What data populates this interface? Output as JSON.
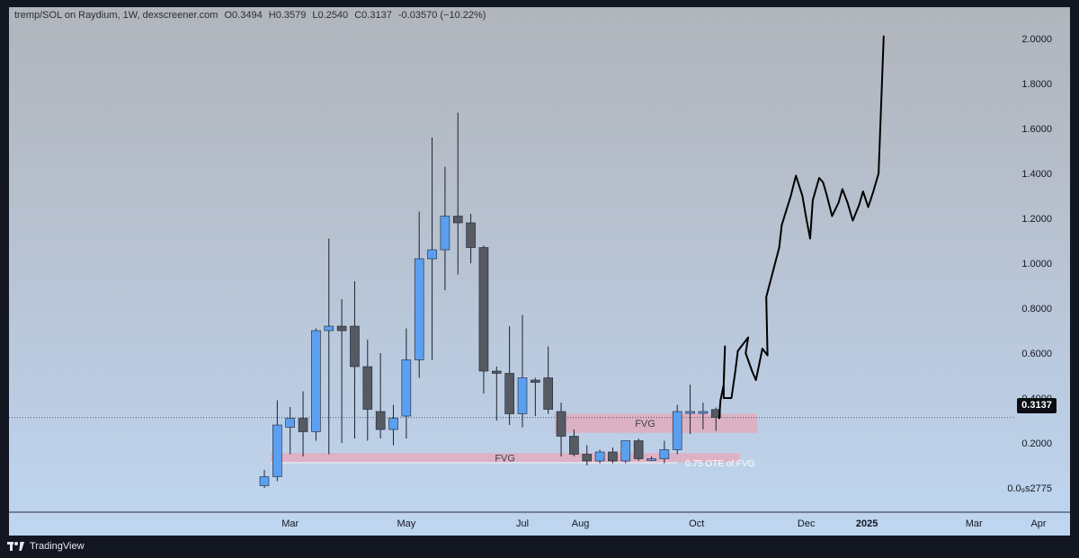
{
  "header": {
    "symbol": "tremp/SOL on Raydium, 1W, dexscreener.com",
    "open": "O0.3494",
    "high": "H0.3579",
    "low": "L0.2540",
    "close": "C0.3137",
    "change": "-0.03570 (−10.22%)"
  },
  "footer": {
    "brand": "TradingView",
    "logo_icon": "tradingview-logo-icon"
  },
  "colors": {
    "bull": "#5ba0f0",
    "bear": "#555a63",
    "fvg_zone": "#e8a7b8",
    "projection": "#000000"
  },
  "chart_data": {
    "type": "candlestick",
    "title": "",
    "symbol": "tremp/SOL",
    "exchange": "Raydium",
    "interval": "1W",
    "source": "dexscreener.com",
    "ylim": [
      -0.11,
      2.08
    ],
    "yticks": [
      {
        "v": 2.0,
        "label": "2.0000"
      },
      {
        "v": 1.8,
        "label": "1.8000"
      },
      {
        "v": 1.6,
        "label": "1.6000"
      },
      {
        "v": 1.4,
        "label": "1.4000"
      },
      {
        "v": 1.2,
        "label": "1.2000"
      },
      {
        "v": 1.0,
        "label": "1.0000"
      },
      {
        "v": 0.8,
        "label": "0.8000"
      },
      {
        "v": 0.6,
        "label": "0.6000"
      },
      {
        "v": 0.4,
        "label": "0.4000"
      },
      {
        "v": 0.2,
        "label": "0.2000"
      },
      {
        "v": 0.0,
        "label": "0.0₉s2775"
      }
    ],
    "xticks": [
      {
        "t": 2.0,
        "label": "Mar",
        "bold": false
      },
      {
        "t": 11.0,
        "label": "May",
        "bold": false
      },
      {
        "t": 20.0,
        "label": "Jul",
        "bold": false
      },
      {
        "t": 24.5,
        "label": "Aug",
        "bold": false
      },
      {
        "t": 33.5,
        "label": "Oct",
        "bold": false
      },
      {
        "t": 42.0,
        "label": "Dec",
        "bold": false
      },
      {
        "t": 46.7,
        "label": "2025",
        "bold": true
      },
      {
        "t": 55.0,
        "label": "Mar",
        "bold": false
      },
      {
        "t": 60.0,
        "label": "Apr",
        "bold": false
      }
    ],
    "last_price": {
      "value": 0.3137,
      "label": "0.3137"
    },
    "candles": [
      {
        "o": 0.01,
        "h": 0.08,
        "l": 0.0,
        "c": 0.05
      },
      {
        "o": 0.05,
        "h": 0.39,
        "l": 0.03,
        "c": 0.28
      },
      {
        "o": 0.27,
        "h": 0.36,
        "l": 0.15,
        "c": 0.31
      },
      {
        "o": 0.31,
        "h": 0.43,
        "l": 0.14,
        "c": 0.25
      },
      {
        "o": 0.25,
        "h": 0.71,
        "l": 0.21,
        "c": 0.7
      },
      {
        "o": 0.7,
        "h": 1.11,
        "l": 0.15,
        "c": 0.72
      },
      {
        "o": 0.72,
        "h": 0.84,
        "l": 0.2,
        "c": 0.7
      },
      {
        "o": 0.72,
        "h": 0.92,
        "l": 0.22,
        "c": 0.54
      },
      {
        "o": 0.54,
        "h": 0.66,
        "l": 0.21,
        "c": 0.35
      },
      {
        "o": 0.34,
        "h": 0.6,
        "l": 0.22,
        "c": 0.26
      },
      {
        "o": 0.26,
        "h": 0.37,
        "l": 0.19,
        "c": 0.31
      },
      {
        "o": 0.32,
        "h": 0.71,
        "l": 0.22,
        "c": 0.57
      },
      {
        "o": 0.57,
        "h": 1.23,
        "l": 0.49,
        "c": 1.02
      },
      {
        "o": 1.02,
        "h": 1.56,
        "l": 0.57,
        "c": 1.06
      },
      {
        "o": 1.06,
        "h": 1.43,
        "l": 0.88,
        "c": 1.21
      },
      {
        "o": 1.21,
        "h": 1.67,
        "l": 0.95,
        "c": 1.18
      },
      {
        "o": 1.18,
        "h": 1.22,
        "l": 1.0,
        "c": 1.07
      },
      {
        "o": 1.07,
        "h": 1.08,
        "l": 0.42,
        "c": 0.52
      },
      {
        "o": 0.52,
        "h": 0.54,
        "l": 0.3,
        "c": 0.51
      },
      {
        "o": 0.51,
        "h": 0.72,
        "l": 0.28,
        "c": 0.33
      },
      {
        "o": 0.33,
        "h": 0.77,
        "l": 0.27,
        "c": 0.49
      },
      {
        "o": 0.48,
        "h": 0.49,
        "l": 0.32,
        "c": 0.47
      },
      {
        "o": 0.49,
        "h": 0.63,
        "l": 0.33,
        "c": 0.35
      },
      {
        "o": 0.34,
        "h": 0.38,
        "l": 0.14,
        "c": 0.23
      },
      {
        "o": 0.23,
        "h": 0.26,
        "l": 0.14,
        "c": 0.15
      },
      {
        "o": 0.15,
        "h": 0.19,
        "l": 0.1,
        "c": 0.12
      },
      {
        "o": 0.12,
        "h": 0.17,
        "l": 0.11,
        "c": 0.16
      },
      {
        "o": 0.16,
        "h": 0.18,
        "l": 0.11,
        "c": 0.12
      },
      {
        "o": 0.12,
        "h": 0.21,
        "l": 0.11,
        "c": 0.21
      },
      {
        "o": 0.21,
        "h": 0.22,
        "l": 0.12,
        "c": 0.13
      },
      {
        "o": 0.13,
        "h": 0.14,
        "l": 0.12,
        "c": 0.13
      },
      {
        "o": 0.13,
        "h": 0.21,
        "l": 0.11,
        "c": 0.17
      },
      {
        "o": 0.17,
        "h": 0.37,
        "l": 0.15,
        "c": 0.34
      },
      {
        "o": 0.34,
        "h": 0.46,
        "l": 0.24,
        "c": 0.34
      },
      {
        "o": 0.34,
        "h": 0.38,
        "l": 0.26,
        "c": 0.34
      },
      {
        "o": 0.349,
        "h": 0.358,
        "l": 0.254,
        "c": 0.314
      }
    ],
    "zones": [
      {
        "label": "FVG",
        "t_start": 22.5,
        "t_end": 38.2,
        "y_top": 0.33,
        "y_bottom": 0.245
      },
      {
        "label": "FVG",
        "t_start": 0.5,
        "t_end": 36.8,
        "y_top": 0.155,
        "y_bottom": 0.115
      }
    ],
    "ote_line": {
      "label": "0.75 OTE of FVG",
      "value": 0.112,
      "t_start": 0.5,
      "t_end": 32.0
    },
    "projection": [
      [
        35.25,
        0.31
      ],
      [
        35.35,
        0.39
      ],
      [
        35.5,
        0.43
      ],
      [
        35.6,
        0.46
      ],
      [
        35.65,
        0.55
      ],
      [
        35.7,
        0.63
      ],
      [
        35.6,
        0.48
      ],
      [
        35.6,
        0.4
      ],
      [
        36.2,
        0.4
      ],
      [
        36.5,
        0.52
      ],
      [
        36.7,
        0.61
      ],
      [
        37.5,
        0.67
      ],
      [
        37.3,
        0.6
      ],
      [
        37.8,
        0.52
      ],
      [
        38.1,
        0.48
      ],
      [
        38.6,
        0.62
      ],
      [
        39.0,
        0.59
      ],
      [
        38.9,
        0.85
      ],
      [
        39.4,
        0.96
      ],
      [
        39.9,
        1.07
      ],
      [
        40.1,
        1.17
      ],
      [
        40.8,
        1.3
      ],
      [
        41.2,
        1.39
      ],
      [
        41.7,
        1.3
      ],
      [
        42.0,
        1.2
      ],
      [
        42.3,
        1.11
      ],
      [
        42.5,
        1.28
      ],
      [
        43.0,
        1.38
      ],
      [
        43.3,
        1.36
      ],
      [
        43.6,
        1.3
      ],
      [
        44.0,
        1.21
      ],
      [
        44.5,
        1.27
      ],
      [
        44.8,
        1.33
      ],
      [
        45.2,
        1.27
      ],
      [
        45.6,
        1.19
      ],
      [
        46.1,
        1.26
      ],
      [
        46.4,
        1.32
      ],
      [
        46.8,
        1.25
      ],
      [
        47.2,
        1.32
      ],
      [
        47.6,
        1.4
      ],
      [
        48.0,
        2.01
      ]
    ]
  }
}
